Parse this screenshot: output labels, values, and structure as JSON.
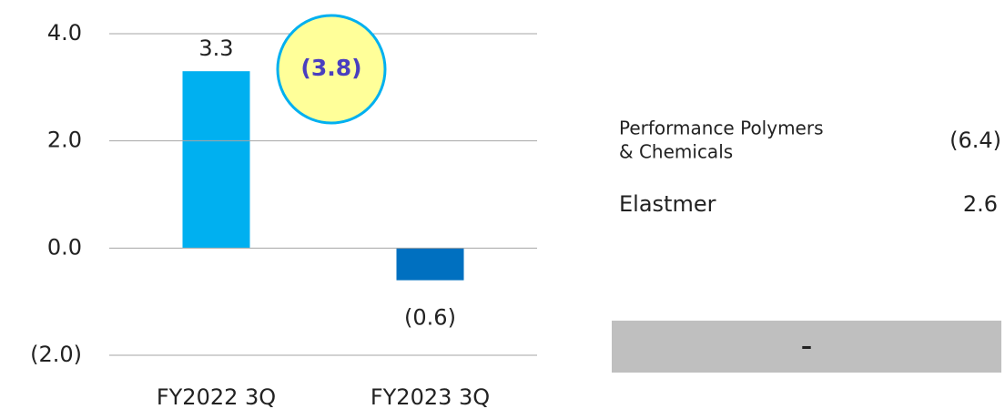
{
  "chart_data": {
    "type": "bar",
    "categories": [
      "FY2022 3Q",
      "FY2023 3Q"
    ],
    "values": [
      3.3,
      -0.6
    ],
    "value_labels": [
      "3.3",
      "(0.6)"
    ],
    "colors": [
      "#00b0f0",
      "#0070c0"
    ],
    "ylim": [
      -2,
      4
    ],
    "yticks": [
      {
        "value": 4,
        "label": "4.0"
      },
      {
        "value": 2,
        "label": "2.0"
      },
      {
        "value": 0,
        "label": "0.0"
      },
      {
        "value": -2,
        "label": "(2.0)"
      }
    ],
    "grid": true,
    "annotations": [
      "(3.8)"
    ]
  },
  "breakdown": {
    "rows": [
      {
        "label": [
          "Performance Polymers",
          "& Chemicals"
        ],
        "value": "(6.4)"
      },
      {
        "label": [
          "Elastmer"
        ],
        "value": "2.6"
      }
    ],
    "footer": "–"
  }
}
